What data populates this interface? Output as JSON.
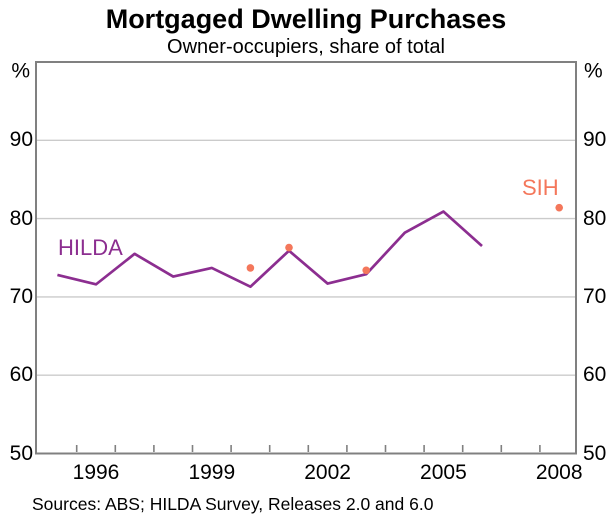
{
  "page": {
    "background": "#FFFFFF"
  },
  "chart_data": {
    "type": "line",
    "title": "Mortgaged Dwelling Purchases",
    "subtitle": "Owner-occupiers, share of total",
    "unit": "%",
    "ylim": [
      50,
      100
    ],
    "yticks": [
      50,
      60,
      70,
      80,
      90
    ],
    "grid": "horizontal gridlines at labelled ticks, full frame border",
    "legend_position": "inline labels next to series",
    "x_axis": {
      "tick_years_start": 1996,
      "tick_years_end": 2008,
      "labelled_years": [
        1996,
        1999,
        2002,
        2005,
        2008
      ]
    },
    "series": [
      {
        "name": "HILDA",
        "type": "line",
        "color": "#8C2E90",
        "x": [
          1995,
          1996,
          1997,
          1998,
          1999,
          2000,
          2001,
          2002,
          2003,
          2004,
          2005,
          2006
        ],
        "values": [
          72.8,
          71.6,
          75.5,
          72.6,
          73.7,
          71.3,
          75.9,
          71.7,
          72.9,
          78.2,
          80.9,
          76.5
        ]
      },
      {
        "name": "SIH",
        "type": "scatter",
        "color": "#F4775B",
        "x": [
          2000,
          2001,
          2003,
          2008
        ],
        "values": [
          73.7,
          76.3,
          73.4,
          81.4
        ]
      }
    ],
    "axis_color": "#808080",
    "grid_color": "#CBCBCB",
    "text_color": "#000000"
  },
  "footer": {
    "sources": "Sources: ABS; HILDA Survey, Releases 2.0 and 6.0"
  }
}
